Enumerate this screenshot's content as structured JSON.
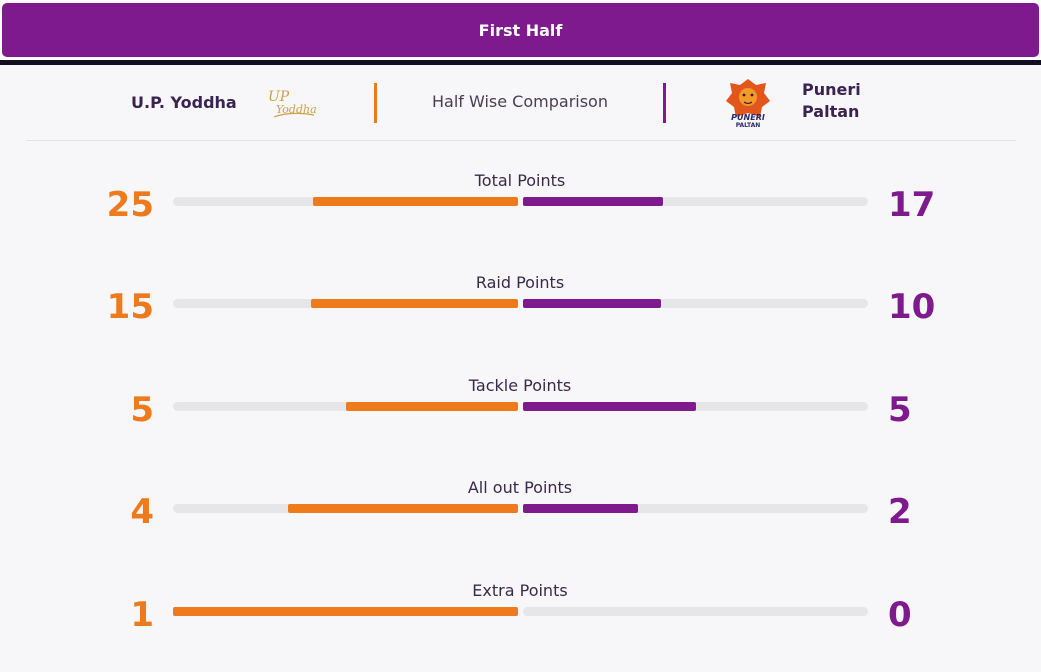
{
  "tab": {
    "label": "First Half"
  },
  "header": {
    "team_left": "U.P. Yoddha",
    "team_right_line1": "Puneri",
    "team_right_line2": "Paltan",
    "comparison_title": "Half Wise Comparison"
  },
  "logos": {
    "left": {
      "icon": "up-yoddha-logo-icon",
      "text_line1": "UP",
      "text_line2": "Yoddha"
    },
    "right": {
      "icon": "puneri-paltan-logo-icon",
      "text_line1": "PUNERI",
      "text_line2": "PALTAN"
    }
  },
  "colors": {
    "left": "#ee7a1c",
    "right": "#7e1a8e",
    "track": "#e6e5e8",
    "tab": "#7e1a8e"
  },
  "stats": [
    {
      "label": "Total Points",
      "left": "25",
      "right": "17",
      "left_fill": 0.595,
      "right_fill": 0.405
    },
    {
      "label": "Raid Points",
      "left": "15",
      "right": "10",
      "left_fill": 0.6,
      "right_fill": 0.4
    },
    {
      "label": "Tackle Points",
      "left": "5",
      "right": "5",
      "left_fill": 0.5,
      "right_fill": 0.5
    },
    {
      "label": "All out Points",
      "left": "4",
      "right": "2",
      "left_fill": 0.667,
      "right_fill": 0.333
    },
    {
      "label": "Extra Points",
      "left": "1",
      "right": "0",
      "left_fill": 1.0,
      "right_fill": 0.0
    }
  ]
}
